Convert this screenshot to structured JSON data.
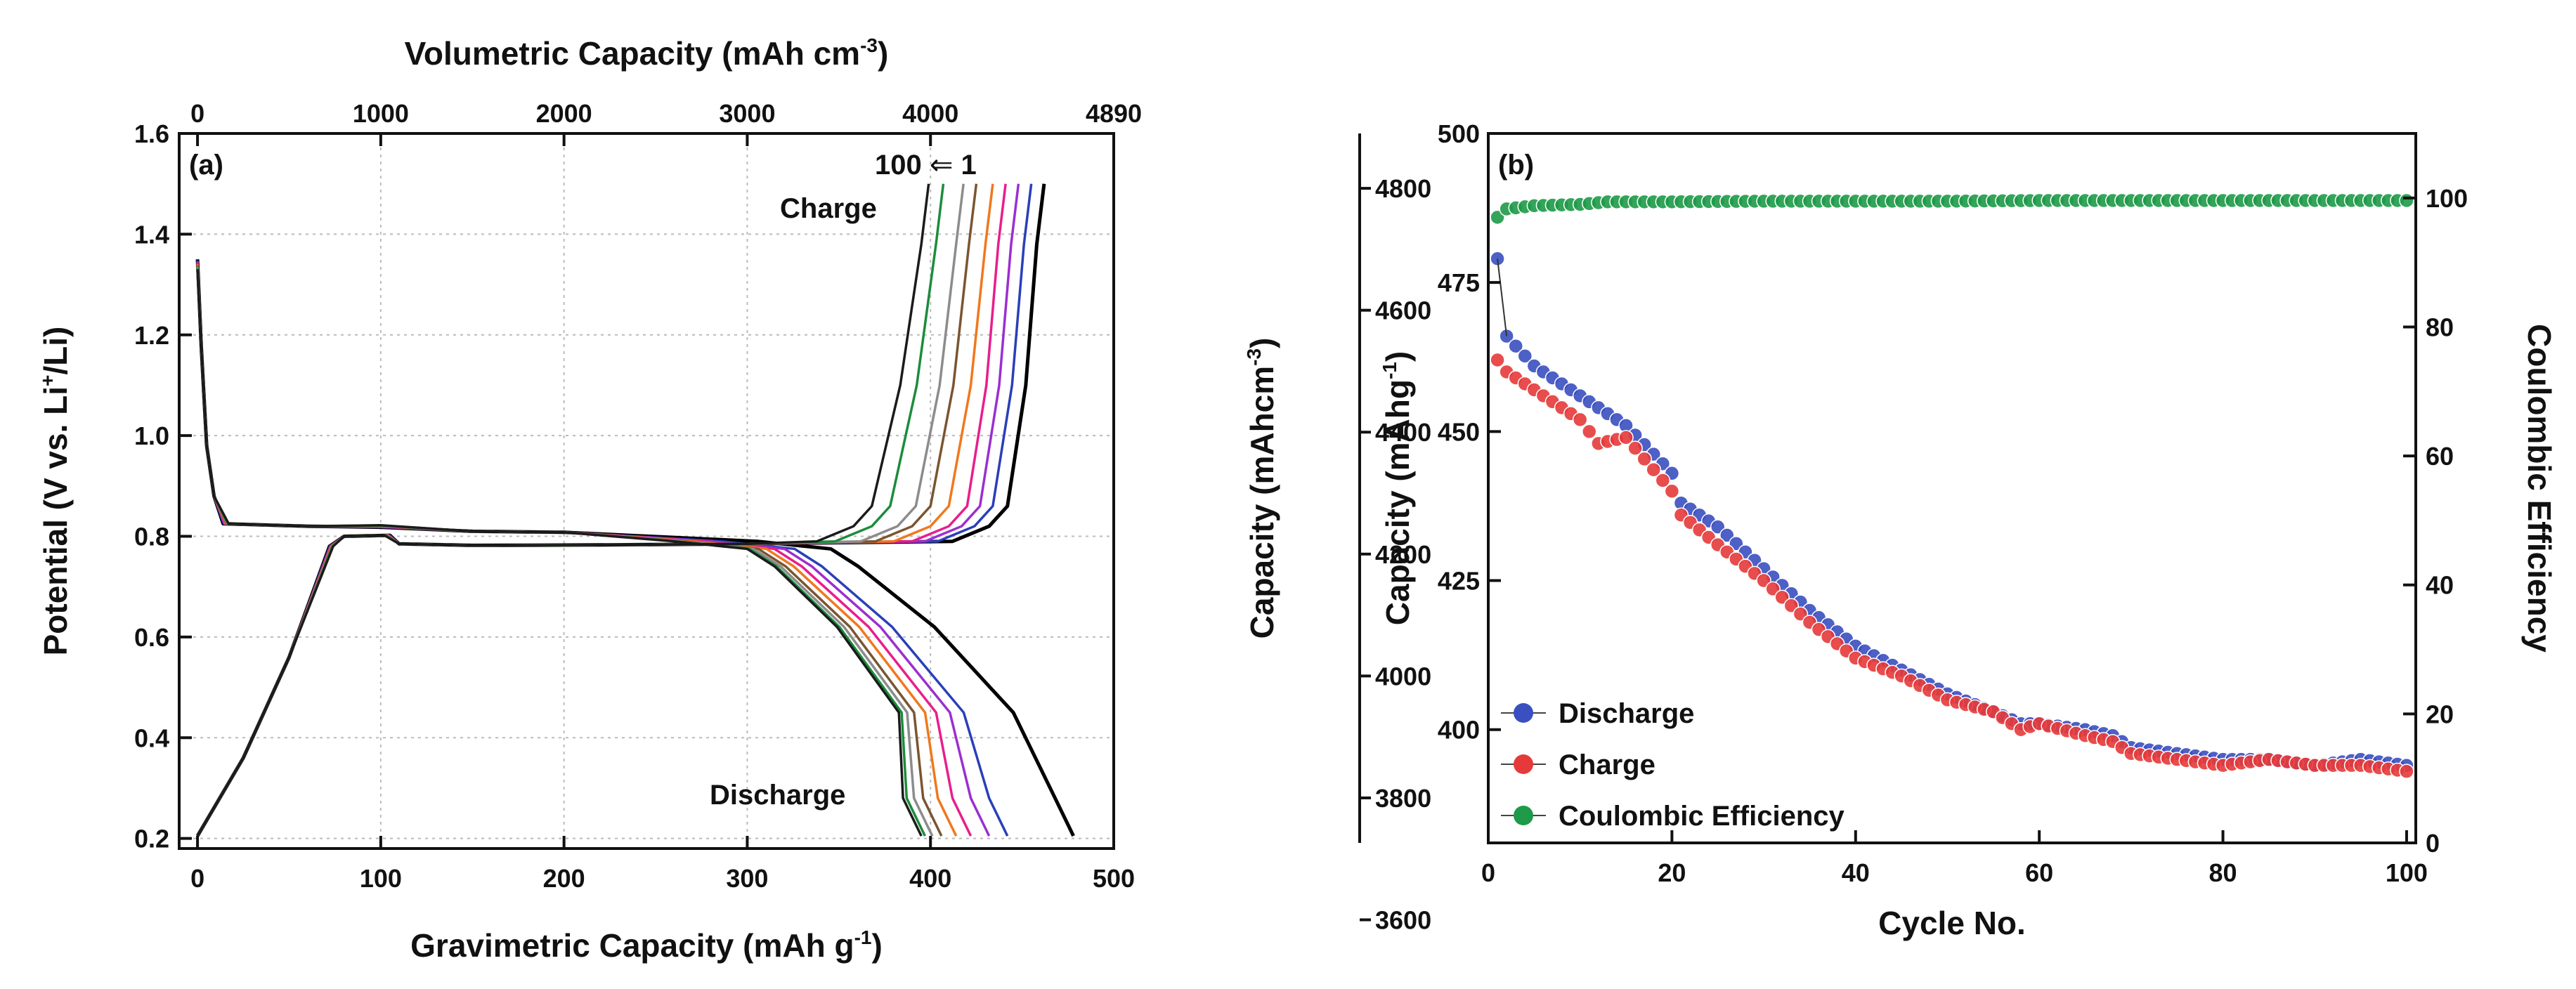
{
  "chart_data": [
    {
      "id": "a",
      "type": "line",
      "panel_label": "(a)",
      "xlabel": "Gravimetric Capacity",
      "xlabel_unit": "(mAh g",
      "xlabel_sup": "-1",
      "xlabel_close": ")",
      "top_xlabel": "Volumetric Capacity",
      "top_xlabel_unit": "(mAh cm",
      "top_xlabel_sup": "-3",
      "top_xlabel_close": ")",
      "ylabel_pre": "Potential (V vs. Li",
      "ylabel_sup": "+",
      "ylabel_post": "/Li)",
      "xlim": [
        -10,
        500
      ],
      "ylim": [
        0.18,
        1.6
      ],
      "xticks": [
        "0",
        "100",
        "200",
        "300",
        "400",
        "500"
      ],
      "xtick_values": [
        0,
        100,
        200,
        300,
        400,
        500
      ],
      "yticks": [
        "0.2",
        "0.4",
        "0.6",
        "0.8",
        "1.0",
        "1.2",
        "1.4",
        "1.6"
      ],
      "ytick_values": [
        0.2,
        0.4,
        0.6,
        0.8,
        1.0,
        1.2,
        1.4,
        1.6
      ],
      "top_xticks": [
        "0",
        "1000",
        "2000",
        "3000",
        "4000",
        "4890"
      ],
      "top_xtick_grav": [
        0,
        100,
        200,
        300,
        400,
        500
      ],
      "grid": true,
      "annotation_cycles_left": "100",
      "annotation_arrow": "⇐",
      "annotation_cycles_right": "1",
      "annotation_charge": "Charge",
      "annotation_discharge": "Discharge",
      "series": [
        {
          "color": "#000000",
          "discharge_end": 478,
          "charge_end": 462,
          "charge_knee": 442
        },
        {
          "color": "#2a3fb8",
          "discharge_end": 442,
          "charge_end": 455,
          "charge_knee": 434
        },
        {
          "color": "#9b2fcf",
          "discharge_end": 432,
          "charge_end": 448,
          "charge_knee": 427
        },
        {
          "color": "#e81e8c",
          "discharge_end": 422,
          "charge_end": 441,
          "charge_knee": 420
        },
        {
          "color": "#f0781e",
          "discharge_end": 414,
          "charge_end": 434,
          "charge_knee": 410
        },
        {
          "color": "#7a5530",
          "discharge_end": 406,
          "charge_end": 425,
          "charge_knee": 400
        },
        {
          "color": "#8c8c8c",
          "discharge_end": 401,
          "charge_end": 418,
          "charge_knee": 392
        },
        {
          "color": "#1c8c3c",
          "discharge_end": 397,
          "charge_end": 407,
          "charge_knee": 378
        },
        {
          "color": "#1b1b1b",
          "discharge_end": 395,
          "charge_end": 399,
          "charge_knee": 368
        }
      ]
    },
    {
      "id": "b",
      "type": "scatter",
      "panel_label": "(b)",
      "xlabel": "Cycle No.",
      "ylabel_left_outer": "Capacity (mAhcm",
      "ylabel_left_outer_sup": "-3",
      "ylabel_left_outer_close": ")",
      "ylabel_left_inner": "Capacity (mAhg",
      "ylabel_left_inner_sup": "-1",
      "ylabel_left_inner_close": ")",
      "ylabel_right": "Coulombic Efficiency",
      "xlim": [
        0,
        101
      ],
      "ylim_grav": [
        381,
        500
      ],
      "ylim_ce": [
        0,
        110
      ],
      "xticks": [
        "0",
        "20",
        "40",
        "60",
        "80",
        "100"
      ],
      "xtick_values": [
        0,
        20,
        40,
        60,
        80,
        100
      ],
      "grav_ticks": [
        "400",
        "425",
        "450",
        "475",
        "500"
      ],
      "grav_tick_values": [
        400,
        425,
        450,
        475,
        500
      ],
      "vol_ticks": [
        "3600",
        "3800",
        "4000",
        "4200",
        "4400",
        "4600",
        "4800"
      ],
      "vol_tick_values": [
        3600,
        3800,
        4000,
        4200,
        4400,
        4600,
        4800
      ],
      "vol_per_grav": 9.78,
      "ce_ticks": [
        "0",
        "20",
        "40",
        "60",
        "80",
        "100"
      ],
      "ce_tick_values": [
        0,
        20,
        40,
        60,
        80,
        100
      ],
      "legend_position": "bottom-left",
      "grid": false,
      "series": [
        {
          "name": "Discharge",
          "color": "#3a4fc0",
          "axis": "grav",
          "x": [
            1,
            2,
            5,
            10,
            15,
            20,
            21,
            25,
            30,
            35,
            40,
            45,
            50,
            55,
            58,
            60,
            65,
            68,
            70,
            75,
            80,
            85,
            90,
            95,
            100
          ],
          "y": [
            479,
            466,
            461,
            456,
            451,
            443,
            438,
            434,
            427,
            420,
            414,
            410,
            406,
            403,
            401,
            401,
            400,
            399,
            397,
            396,
            395,
            395,
            394,
            395,
            394
          ]
        },
        {
          "name": "Charge",
          "color": "#e63a3a",
          "axis": "grav",
          "x": [
            1,
            2,
            5,
            10,
            12,
            15,
            20,
            21,
            25,
            30,
            35,
            40,
            45,
            50,
            55,
            58,
            60,
            65,
            68,
            70,
            75,
            80,
            85,
            90,
            95,
            100
          ],
          "y": [
            462,
            460,
            457,
            452,
            448,
            449,
            440,
            436,
            431,
            425,
            418,
            412,
            409,
            405,
            403,
            400,
            401,
            399,
            398,
            396,
            395,
            394,
            395,
            394,
            394,
            393
          ]
        },
        {
          "name": "Coulombic Efficiency",
          "color": "#1e9a48",
          "axis": "ce",
          "x": [
            1,
            2,
            5,
            10,
            13,
            20,
            30,
            40,
            50,
            60,
            70,
            80,
            90,
            100
          ],
          "y": [
            97,
            98.3,
            98.8,
            99,
            99.4,
            99.4,
            99.5,
            99.5,
            99.5,
            99.6,
            99.6,
            99.6,
            99.6,
            99.6
          ]
        }
      ]
    }
  ]
}
